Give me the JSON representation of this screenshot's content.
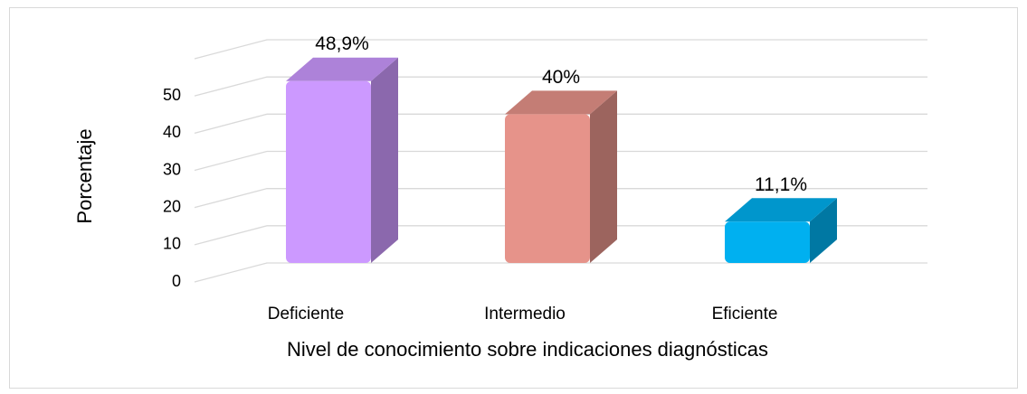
{
  "chart_data": {
    "type": "bar3d",
    "x_label": "Nivel de conocimiento sobre indicaciones diagnósticas",
    "y_label": "Porcentaje",
    "categories": [
      "Deficiente",
      "Intermedio",
      "Eficiente"
    ],
    "values": [
      48.9,
      40,
      11.1
    ],
    "value_labels": [
      "48,9%",
      "40%",
      "11,1%"
    ],
    "colors": [
      "#cc99ff",
      "#e6938a",
      "#00b0f0"
    ],
    "ylim": [
      0,
      60
    ],
    "yticks": [
      0,
      10,
      20,
      30,
      40,
      50
    ],
    "grid": true
  }
}
